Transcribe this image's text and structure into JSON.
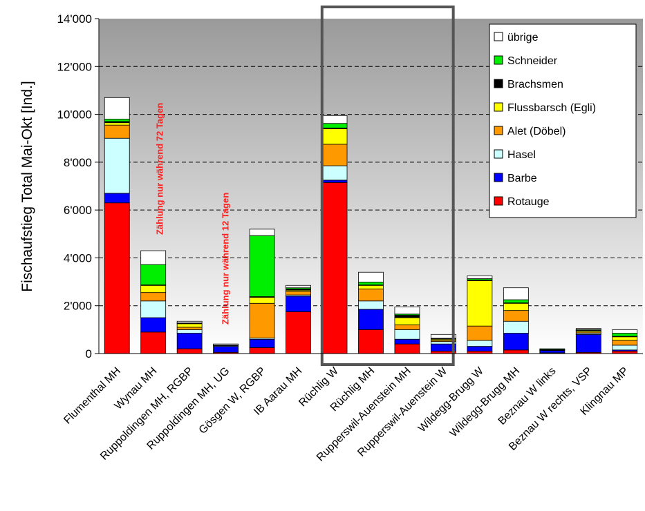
{
  "chart_data": {
    "type": "bar",
    "stacked": true,
    "ylabel": "Fischaufstieg Total Mai-Okt [Ind.]",
    "ylim": [
      0,
      14000
    ],
    "yticks": [
      0,
      2000,
      4000,
      6000,
      8000,
      10000,
      12000,
      14000
    ],
    "ytick_labels": [
      "0",
      "2'000",
      "4'000",
      "6'000",
      "8'000",
      "10'000",
      "12'000",
      "14'000"
    ],
    "grid": "horizontal dashed",
    "legend_position": "top-right",
    "categories": [
      "Flumenthal MH",
      "Wynau MH",
      "Ruppoldingen MH, RGBP",
      "Ruppoldingen MH, UG",
      "Gösgen W, RGBP",
      "IB Aarau MH",
      "Rüchlig W",
      "Rüchlig MH",
      "Rupperswil-Auenstein MH",
      "Rupperswil-Auenstein W",
      "Wildegg-Brugg W",
      "Wildegg-Brugg MH",
      "Beznau W links",
      "Beznau W rechts, VSP",
      "Klingnau MP"
    ],
    "series": [
      {
        "name": "Rotauge",
        "color": "#ff0000",
        "values": [
          6300,
          900,
          200,
          50,
          250,
          1750,
          7150,
          1000,
          400,
          100,
          100,
          150,
          30,
          50,
          100
        ]
      },
      {
        "name": "Barbe",
        "color": "#0000ff",
        "values": [
          400,
          600,
          650,
          250,
          350,
          650,
          100,
          850,
          200,
          300,
          200,
          700,
          100,
          750,
          50
        ]
      },
      {
        "name": "Hasel",
        "color": "#ccffff",
        "values": [
          2300,
          700,
          150,
          30,
          50,
          50,
          600,
          350,
          400,
          100,
          250,
          500,
          20,
          50,
          200
        ]
      },
      {
        "name": "Alet (Döbel)",
        "color": "#ff9900",
        "values": [
          550,
          350,
          100,
          10,
          1450,
          150,
          900,
          500,
          200,
          50,
          600,
          450,
          10,
          50,
          200
        ]
      },
      {
        "name": "Flussbarsch (Egli)",
        "color": "#ffff00",
        "values": [
          100,
          300,
          150,
          10,
          250,
          50,
          650,
          150,
          300,
          50,
          1900,
          300,
          10,
          50,
          150
        ]
      },
      {
        "name": "Brachsmen",
        "color": "#000000",
        "values": [
          50,
          20,
          10,
          0,
          30,
          50,
          30,
          20,
          100,
          20,
          30,
          20,
          0,
          20,
          20
        ]
      },
      {
        "name": "Schneider",
        "color": "#00ee00",
        "values": [
          100,
          850,
          20,
          0,
          2550,
          50,
          190,
          120,
          50,
          20,
          50,
          130,
          30,
          30,
          130
        ]
      },
      {
        "name": "übrige",
        "color": "#ffffff",
        "values": [
          900,
          580,
          70,
          50,
          270,
          100,
          330,
          410,
          300,
          160,
          120,
          500,
          0,
          50,
          150
        ]
      }
    ],
    "annotations": [
      {
        "text": "Zählung nur während 72 Tagen",
        "category": "Wynau MH"
      },
      {
        "text": "Zählung nur während 12 Tagen",
        "category": "Ruppoldingen MH, UG"
      }
    ],
    "highlight": {
      "categories": [
        "Rüchlig W",
        "Rüchlig MH",
        "Rupperswil-Auenstein MH",
        "Rupperswil-Auenstein W"
      ]
    }
  }
}
